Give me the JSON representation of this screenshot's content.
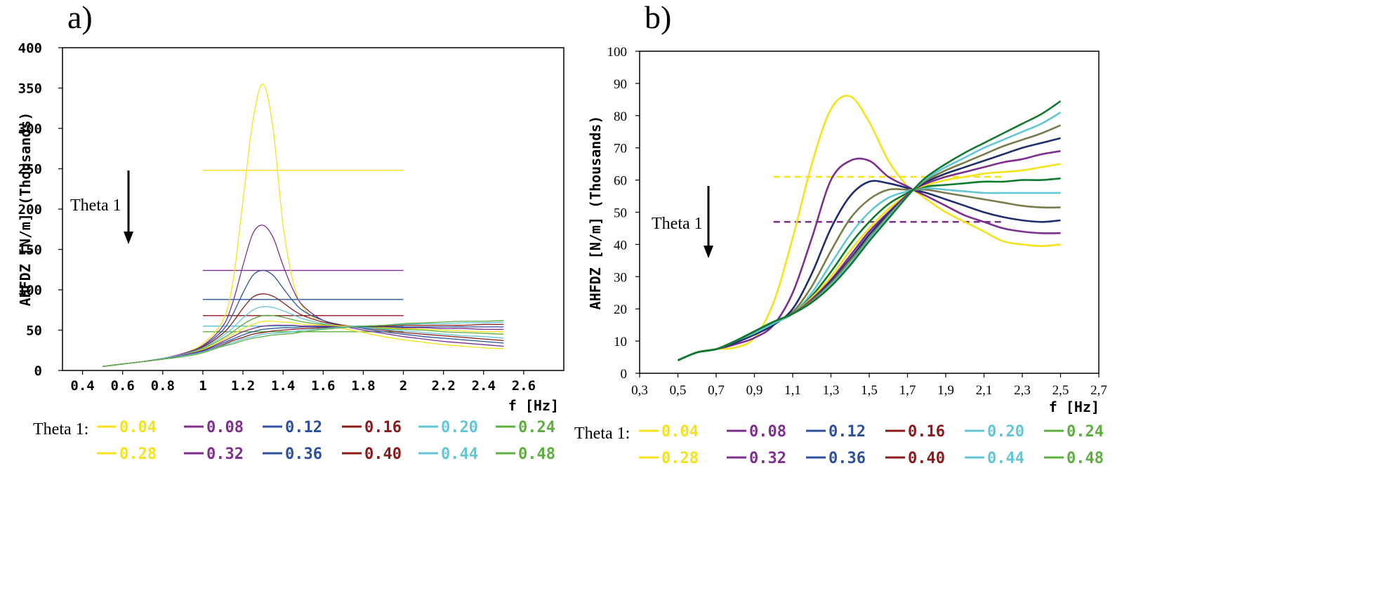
{
  "chart_data": [
    {
      "panel": "a)",
      "type": "line",
      "xlabel": "f [Hz]",
      "ylabel": "AHFDZ [N/m] (Thousands)",
      "xlim": [
        0.3,
        2.8
      ],
      "ylim": [
        0,
        400
      ],
      "xticks": [
        0.4,
        0.6,
        0.8,
        1,
        1.2,
        1.4,
        1.6,
        1.8,
        2,
        2.2,
        2.4,
        2.6
      ],
      "xtick_labels": [
        "0.4",
        "0.6",
        "0.8",
        "1",
        "1.2",
        "1.4",
        "1.6",
        "1.8",
        "2",
        "2.2",
        "2.4",
        "2.6"
      ],
      "yticks": [
        0,
        50,
        100,
        150,
        200,
        250,
        300,
        350,
        400
      ],
      "ytick_labels": [
        "0",
        "50",
        "100",
        "150",
        "200",
        "250",
        "300",
        "350",
        "400"
      ],
      "arrow_label": "Theta 1",
      "x": [
        0.5,
        0.6,
        0.7,
        0.8,
        0.9,
        1.0,
        1.1,
        1.15,
        1.2,
        1.25,
        1.3,
        1.35,
        1.4,
        1.45,
        1.5,
        1.6,
        1.7,
        1.8,
        1.9,
        2.0,
        2.1,
        2.2,
        2.3,
        2.4,
        2.5
      ],
      "series": [
        {
          "name": "0.04",
          "color": "#f4e21a",
          "values": [
            5,
            8,
            11,
            15,
            21,
            33,
            62,
            110,
            210,
            310,
            355,
            300,
            180,
            110,
            78,
            58,
            52,
            47,
            42,
            38,
            35,
            32,
            30,
            28,
            27
          ]
        },
        {
          "name": "0.08",
          "color": "#7e2e8e",
          "values": [
            5,
            8,
            11,
            15,
            21,
            31,
            55,
            85,
            130,
            170,
            180,
            165,
            130,
            100,
            80,
            62,
            55,
            50,
            46,
            42,
            39,
            36,
            34,
            32,
            30
          ]
        },
        {
          "name": "0.12",
          "color": "#2d4f9e",
          "values": [
            5,
            8,
            11,
            15,
            20,
            30,
            50,
            70,
            96,
            118,
            124,
            118,
            102,
            86,
            74,
            62,
            56,
            52,
            48,
            45,
            42,
            40,
            38,
            36,
            34
          ]
        },
        {
          "name": "0.16",
          "color": "#8b1a1a",
          "values": [
            5,
            8,
            11,
            15,
            20,
            29,
            46,
            60,
            77,
            91,
            95,
            92,
            84,
            75,
            68,
            60,
            56,
            53,
            50,
            47,
            45,
            43,
            41,
            39,
            37
          ]
        },
        {
          "name": "0.20",
          "color": "#62c6d6",
          "values": [
            5,
            8,
            11,
            15,
            20,
            28,
            43,
            53,
            65,
            75,
            79,
            78,
            74,
            69,
            64,
            58,
            55,
            53,
            51,
            49,
            47,
            45,
            43,
            42,
            40
          ]
        },
        {
          "name": "0.24",
          "color": "#5cae3e",
          "values": [
            5,
            8,
            11,
            14,
            19,
            27,
            40,
            48,
            57,
            64,
            68,
            68,
            66,
            63,
            60,
            57,
            55,
            54,
            52,
            51,
            50,
            48,
            47,
            46,
            45
          ]
        },
        {
          "name": "0.28",
          "color": "#f4e21a",
          "values": [
            5,
            8,
            11,
            14,
            19,
            26,
            38,
            45,
            52,
            57,
            61,
            61,
            60,
            59,
            57,
            56,
            55,
            54,
            53,
            52,
            51,
            50,
            49,
            48,
            48
          ]
        },
        {
          "name": "0.32",
          "color": "#7e2e8e",
          "values": [
            5,
            8,
            11,
            14,
            19,
            25,
            36,
            42,
            48,
            52,
            55,
            56,
            56,
            56,
            55,
            55,
            54,
            54,
            54,
            53,
            53,
            52,
            52,
            51,
            51
          ]
        },
        {
          "name": "0.36",
          "color": "#2d4f9e",
          "values": [
            5,
            8,
            11,
            14,
            18,
            24,
            34,
            39,
            44,
            48,
            51,
            52,
            53,
            53,
            54,
            54,
            54,
            54,
            54,
            54,
            54,
            54,
            54,
            54,
            54
          ]
        },
        {
          "name": "0.40",
          "color": "#8b1a1a",
          "values": [
            5,
            8,
            11,
            14,
            18,
            23,
            32,
            37,
            41,
            45,
            47,
            49,
            50,
            51,
            52,
            53,
            54,
            55,
            55,
            56,
            56,
            56,
            56,
            57,
            57
          ]
        },
        {
          "name": "0.44",
          "color": "#62c6d6",
          "values": [
            5,
            8,
            11,
            14,
            18,
            23,
            31,
            35,
            39,
            42,
            45,
            46,
            47,
            48,
            50,
            52,
            54,
            55,
            56,
            57,
            58,
            58,
            59,
            59,
            60
          ]
        },
        {
          "name": "0.48",
          "color": "#5cae3e",
          "values": [
            5,
            8,
            11,
            14,
            17,
            22,
            30,
            33,
            37,
            40,
            42,
            44,
            45,
            46,
            48,
            51,
            53,
            55,
            56,
            58,
            59,
            60,
            61,
            61,
            62
          ]
        }
      ],
      "reference_lines": [
        {
          "y": 248,
          "x_from": 1.0,
          "x_to": 2.0,
          "color": "#f4e21a",
          "style": "solid"
        },
        {
          "y": 124,
          "x_from": 1.0,
          "x_to": 2.0,
          "color": "#7e2e8e",
          "style": "solid"
        },
        {
          "y": 88,
          "x_from": 1.0,
          "x_to": 2.0,
          "color": "#2d4f9e",
          "style": "solid"
        },
        {
          "y": 68,
          "x_from": 1.0,
          "x_to": 2.0,
          "color": "#8b1a1a",
          "style": "solid"
        },
        {
          "y": 55,
          "x_from": 1.0,
          "x_to": 2.0,
          "color": "#62c6d6",
          "style": "solid"
        },
        {
          "y": 48,
          "x_from": 1.0,
          "x_to": 2.0,
          "color": "#5cae3e",
          "style": "solid"
        }
      ]
    },
    {
      "panel": "b)",
      "type": "line",
      "xlabel": "f [Hz]",
      "ylabel": "AHFDZ [N/m] (Thousands)",
      "xlim": [
        0.3,
        2.7
      ],
      "ylim": [
        0,
        100
      ],
      "xticks": [
        0.3,
        0.5,
        0.7,
        0.9,
        1.1,
        1.3,
        1.5,
        1.7,
        1.9,
        2.1,
        2.3,
        2.5,
        2.7
      ],
      "xtick_labels": [
        "0,3",
        "0,5",
        "0,7",
        "0,9",
        "1,1",
        "1,3",
        "1,5",
        "1,7",
        "1,9",
        "2,1",
        "2,3",
        "2,5",
        "2,7"
      ],
      "yticks": [
        0,
        10,
        20,
        30,
        40,
        50,
        60,
        70,
        80,
        90,
        100
      ],
      "ytick_labels": [
        "0",
        "10",
        "20",
        "30",
        "40",
        "50",
        "60",
        "70",
        "80",
        "90",
        "100"
      ],
      "arrow_label": "Theta 1",
      "x": [
        0.5,
        0.6,
        0.7,
        0.8,
        0.9,
        1.0,
        1.1,
        1.2,
        1.3,
        1.4,
        1.5,
        1.6,
        1.7,
        1.73,
        1.8,
        1.9,
        2.0,
        2.1,
        2.2,
        2.3,
        2.4,
        2.5
      ],
      "series": [
        {
          "name": "0.04",
          "color": "#f4e21a",
          "values": [
            4,
            6.5,
            7.5,
            8,
            11,
            22,
            42,
            65,
            82,
            86,
            78,
            66,
            58,
            57,
            54,
            50,
            47,
            44,
            41,
            40,
            39.5,
            40
          ]
        },
        {
          "name": "0.08",
          "color": "#7e2e8e",
          "values": [
            4,
            6.5,
            7.5,
            9,
            11,
            15,
            25,
            42,
            60,
            66,
            66,
            61,
            58,
            57,
            55,
            52,
            49,
            47,
            45,
            44,
            43.5,
            43.5
          ]
        },
        {
          "name": "0.12",
          "color": "#1e2d6e",
          "values": [
            4,
            6.5,
            7.5,
            9.5,
            12,
            15,
            20,
            31,
            45,
            55,
            59.5,
            59,
            57.5,
            57,
            56,
            54,
            52,
            50,
            48.5,
            47.5,
            47,
            47.5
          ]
        },
        {
          "name": "0.16",
          "color": "#7a7a4a",
          "values": [
            4,
            6.5,
            7.5,
            10,
            12.5,
            15.5,
            19,
            27,
            38,
            48,
            54,
            57,
            57,
            57,
            57,
            56,
            55,
            54,
            53,
            52,
            51.5,
            51.5
          ]
        },
        {
          "name": "0.20",
          "color": "#62c6d6",
          "values": [
            4,
            6.5,
            7.5,
            10,
            12.5,
            15.5,
            18.5,
            25,
            34,
            43,
            50,
            54.5,
            56.5,
            57,
            57.5,
            57,
            56.5,
            56,
            56,
            56,
            56,
            56
          ]
        },
        {
          "name": "0.24",
          "color": "#0e7a2e",
          "values": [
            4,
            6.5,
            7.5,
            10,
            13,
            16,
            18.5,
            24,
            31.5,
            40,
            47,
            52.5,
            56,
            57,
            58,
            58.5,
            59,
            59.5,
            59.5,
            60,
            60,
            60.5
          ]
        },
        {
          "name": "0.28",
          "color": "#f4e21a",
          "values": [
            4,
            6.5,
            7.5,
            10,
            13,
            16,
            18.5,
            23.5,
            30,
            38,
            45,
            51,
            55.5,
            57,
            58.5,
            60,
            61,
            62,
            62.5,
            63,
            64,
            65
          ]
        },
        {
          "name": "0.32",
          "color": "#7e2e8e",
          "values": [
            4,
            6.5,
            7.5,
            10,
            13,
            16,
            18.5,
            23,
            29,
            36.5,
            44,
            50,
            55.5,
            57,
            59,
            61,
            62.5,
            64,
            65.5,
            66.5,
            68,
            69
          ]
        },
        {
          "name": "0.36",
          "color": "#1e2d6e",
          "values": [
            4,
            6.5,
            7.5,
            10,
            13,
            16,
            18.5,
            22.5,
            28.5,
            35.5,
            43,
            49.5,
            55,
            57,
            59.5,
            62,
            64,
            66,
            68,
            70,
            71.5,
            73
          ]
        },
        {
          "name": "0.40",
          "color": "#7a7a4a",
          "values": [
            4,
            6.5,
            7.5,
            10,
            13,
            16,
            18.5,
            22.5,
            28,
            35,
            42,
            49,
            55,
            57,
            60,
            63,
            65.5,
            68,
            70.5,
            72.5,
            74.5,
            77
          ]
        },
        {
          "name": "0.44",
          "color": "#62c6d6",
          "values": [
            4,
            6.5,
            7.5,
            10,
            13,
            16,
            18.5,
            22,
            27.5,
            34,
            41.5,
            48.5,
            55,
            57,
            60.5,
            64,
            67,
            70,
            72.5,
            75,
            77.5,
            81
          ]
        },
        {
          "name": "0.48",
          "color": "#0e7a2e",
          "values": [
            4,
            6.5,
            7.5,
            10,
            13,
            16,
            18.5,
            22,
            27,
            33.5,
            41,
            48,
            55,
            57,
            61,
            65,
            68.5,
            71.5,
            74.5,
            77.5,
            80.5,
            84.5
          ]
        }
      ],
      "reference_lines": [
        {
          "y": 61,
          "x_from": 1.0,
          "x_to": 2.2,
          "color": "#f4e21a",
          "style": "dashed"
        },
        {
          "y": 47,
          "x_from": 1.0,
          "x_to": 2.2,
          "color": "#7e2e8e",
          "style": "dashed"
        }
      ]
    }
  ],
  "legend": {
    "title": "Theta 1:",
    "a": [
      {
        "label": "0.04",
        "color": "#f4e21a",
        "text_color": "#f4e21a"
      },
      {
        "label": "0.08",
        "color": "#7e2e8e",
        "text_color": "#7e2e8e"
      },
      {
        "label": "0.12",
        "color": "#2d4f9e",
        "text_color": "#2d4f9e"
      },
      {
        "label": "0.16",
        "color": "#8b1a1a",
        "text_color": "#8b1a1a"
      },
      {
        "label": "0.20",
        "color": "#62c6d6",
        "text_color": "#62c6d6"
      },
      {
        "label": "0.24",
        "color": "#5cae3e",
        "text_color": "#5cae3e"
      },
      {
        "label": "0.28",
        "color": "#f4e21a",
        "text_color": "#f4e21a"
      },
      {
        "label": "0.32",
        "color": "#7e2e8e",
        "text_color": "#7e2e8e"
      },
      {
        "label": "0.36",
        "color": "#2d4f9e",
        "text_color": "#2d4f9e"
      },
      {
        "label": "0.40",
        "color": "#8b1a1a",
        "text_color": "#8b1a1a"
      },
      {
        "label": "0.44",
        "color": "#62c6d6",
        "text_color": "#62c6d6"
      },
      {
        "label": "0.48",
        "color": "#5cae3e",
        "text_color": "#5cae3e"
      }
    ],
    "b": [
      {
        "label": "0.04",
        "color": "#f4e21a",
        "text_color": "#f4e21a"
      },
      {
        "label": "0.08",
        "color": "#7e2e8e",
        "text_color": "#7e2e8e"
      },
      {
        "label": "0.12",
        "color": "#2d4f9e",
        "text_color": "#2d4f9e"
      },
      {
        "label": "0.16",
        "color": "#8b1a1a",
        "text_color": "#8b1a1a"
      },
      {
        "label": "0.20",
        "color": "#62c6d6",
        "text_color": "#62c6d6"
      },
      {
        "label": "0.24",
        "color": "#5cae3e",
        "text_color": "#5cae3e"
      },
      {
        "label": "0.28",
        "color": "#f4e21a",
        "text_color": "#f4e21a"
      },
      {
        "label": "0.32",
        "color": "#7e2e8e",
        "text_color": "#7e2e8e"
      },
      {
        "label": "0.36",
        "color": "#2d4f9e",
        "text_color": "#2d4f9e"
      },
      {
        "label": "0.40",
        "color": "#8b1a1a",
        "text_color": "#8b1a1a"
      },
      {
        "label": "0.44",
        "color": "#62c6d6",
        "text_color": "#62c6d6"
      },
      {
        "label": "0.48",
        "color": "#5cae3e",
        "text_color": "#5cae3e"
      }
    ]
  }
}
